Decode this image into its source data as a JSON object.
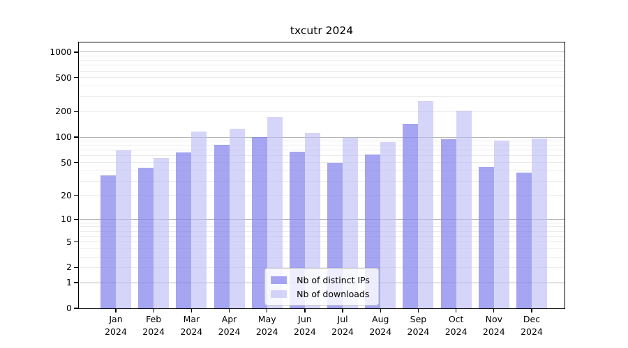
{
  "title": "txcutr 2024",
  "chart_data": {
    "type": "bar",
    "title": "txcutr 2024",
    "categories": [
      "Jan 2024",
      "Feb 2024",
      "Mar 2024",
      "Apr 2024",
      "May 2024",
      "Jun 2024",
      "Jul 2024",
      "Aug 2024",
      "Sep 2024",
      "Oct 2024",
      "Nov 2024",
      "Dec 2024"
    ],
    "series": [
      {
        "name": "Nb of distinct IPs",
        "color": "#8080ecb5",
        "values": [
          35,
          43,
          66,
          81,
          100,
          67,
          50,
          62,
          144,
          95,
          44,
          38
        ]
      },
      {
        "name": "Nb of downloads",
        "color": "#bbbbf59e",
        "values": [
          70,
          57,
          116,
          127,
          175,
          112,
          98,
          87,
          270,
          205,
          92,
          97
        ]
      }
    ],
    "yscale": "log1p",
    "yticks": [
      0,
      1,
      2,
      5,
      10,
      20,
      50,
      100,
      200,
      500,
      1000
    ],
    "grid_major": [
      1,
      10,
      100,
      1000
    ],
    "ylim": [
      0,
      1300
    ],
    "grid": true,
    "legend_position": "lower center"
  },
  "colors": {
    "bar_ips_effective": "#a5a5ef",
    "bar_downloads_effective": "#d6d6f8",
    "grid_major": "#b5b5b5",
    "grid_minor": "#ebebeb",
    "spine": "#000000",
    "legend_border": "#cccccc",
    "legend_bg": "rgba(255,255,255,0.8)",
    "text": "#000000"
  }
}
